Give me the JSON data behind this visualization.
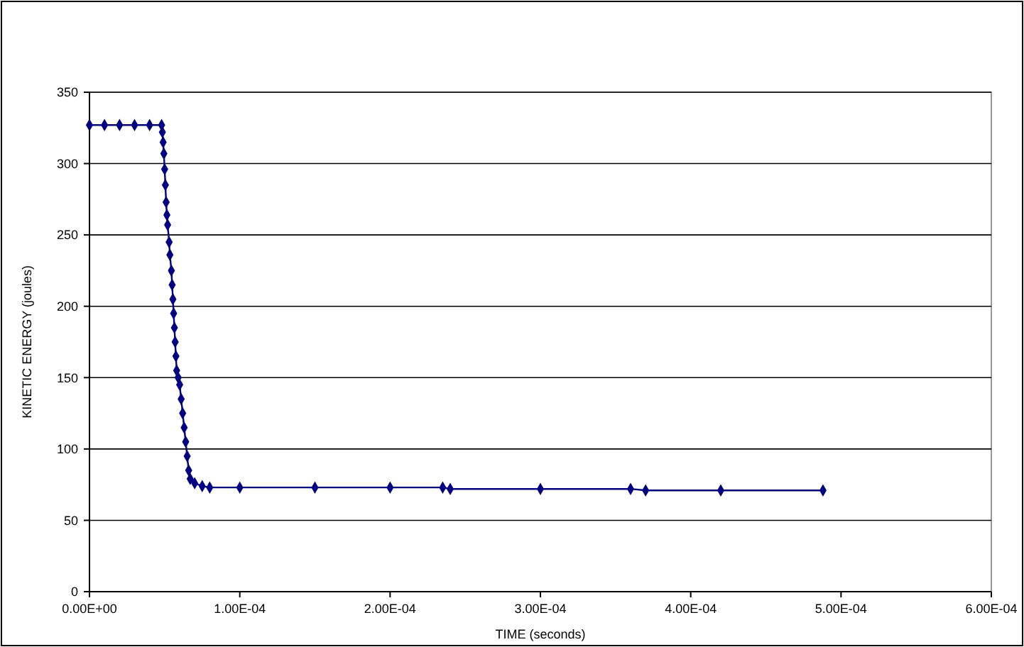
{
  "chart_data": {
    "type": "line",
    "xlabel": "TIME (seconds)",
    "ylabel": "KINETIC ENERGY (joules)",
    "x": [
      0,
      1e-05,
      2e-05,
      3e-05,
      4e-05,
      4.8e-05,
      4.85e-05,
      4.9e-05,
      4.95e-05,
      5e-05,
      5.05e-05,
      5.1e-05,
      5.15e-05,
      5.2e-05,
      5.3e-05,
      5.35e-05,
      5.45e-05,
      5.5e-05,
      5.55e-05,
      5.6e-05,
      5.65e-05,
      5.7e-05,
      5.75e-05,
      5.8e-05,
      5.9e-05,
      6e-05,
      6.1e-05,
      6.2e-05,
      6.3e-05,
      6.4e-05,
      6.5e-05,
      6.6e-05,
      6.7e-05,
      7e-05,
      7.5e-05,
      8e-05,
      0.0001,
      0.00015,
      0.0002,
      0.000235,
      0.00024,
      0.0003,
      0.00036,
      0.00037,
      0.00042,
      0.000488
    ],
    "series": [
      {
        "color": "#000080",
        "values": [
          327,
          327,
          327,
          327,
          327,
          327,
          322,
          315,
          307,
          296,
          285,
          273,
          264,
          257,
          245,
          236,
          225,
          215,
          205,
          195,
          185,
          175,
          165,
          155,
          150,
          145,
          135,
          125,
          115,
          105,
          95,
          85,
          79,
          76,
          74,
          73,
          73,
          73,
          73,
          73,
          72,
          72,
          72,
          71,
          71,
          71
        ]
      }
    ],
    "xlim": [
      0,
      0.0006
    ],
    "ylim": [
      0,
      350
    ],
    "xticks": [
      {
        "value": 0,
        "label": "0.00E+00"
      },
      {
        "value": 0.0001,
        "label": "1.00E-04"
      },
      {
        "value": 0.0002,
        "label": "2.00E-04"
      },
      {
        "value": 0.0003,
        "label": "3.00E-04"
      },
      {
        "value": 0.0004,
        "label": "4.00E-04"
      },
      {
        "value": 0.0005,
        "label": "5.00E-04"
      },
      {
        "value": 0.0006,
        "label": "6.00E-04"
      }
    ],
    "yticks": [
      0,
      50,
      100,
      150,
      200,
      250,
      300,
      350
    ],
    "grid": "y",
    "marker": "diamond",
    "line_style": "solid"
  }
}
